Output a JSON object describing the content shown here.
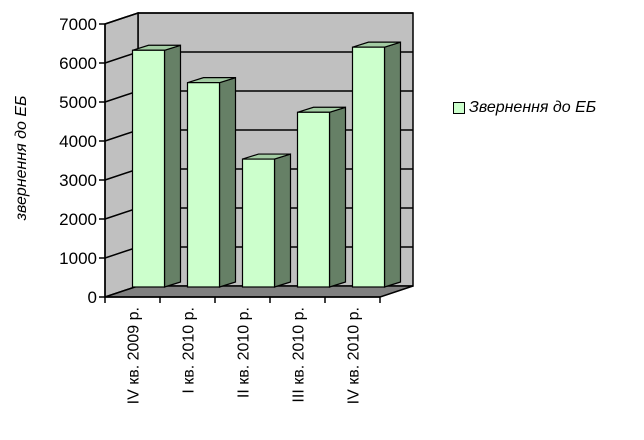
{
  "chart_data": {
    "type": "bar",
    "categories": [
      "IV кв. 2009 р.",
      "I кв. 2010 р.",
      "II кв. 2010 р.",
      "III кв. 2010 р.",
      "IV кв. 2010 р."
    ],
    "series": [
      {
        "name": "Звернення до ЕБ",
        "values": [
          6070,
          5240,
          3280,
          4480,
          6150
        ]
      }
    ],
    "ylabel": "звернення до ЕБ",
    "xlabel": "",
    "ylim": [
      0,
      7000
    ],
    "yticks": [
      0,
      1000,
      2000,
      3000,
      4000,
      5000,
      6000,
      7000
    ],
    "grid": true,
    "style": "3d",
    "legend_position": "right",
    "colors": {
      "bar_front": "#ccffcc",
      "bar_side": "#668066",
      "bar_top": "#a3cca3",
      "wall": "#c0c0c0",
      "floor": "#808080"
    }
  }
}
